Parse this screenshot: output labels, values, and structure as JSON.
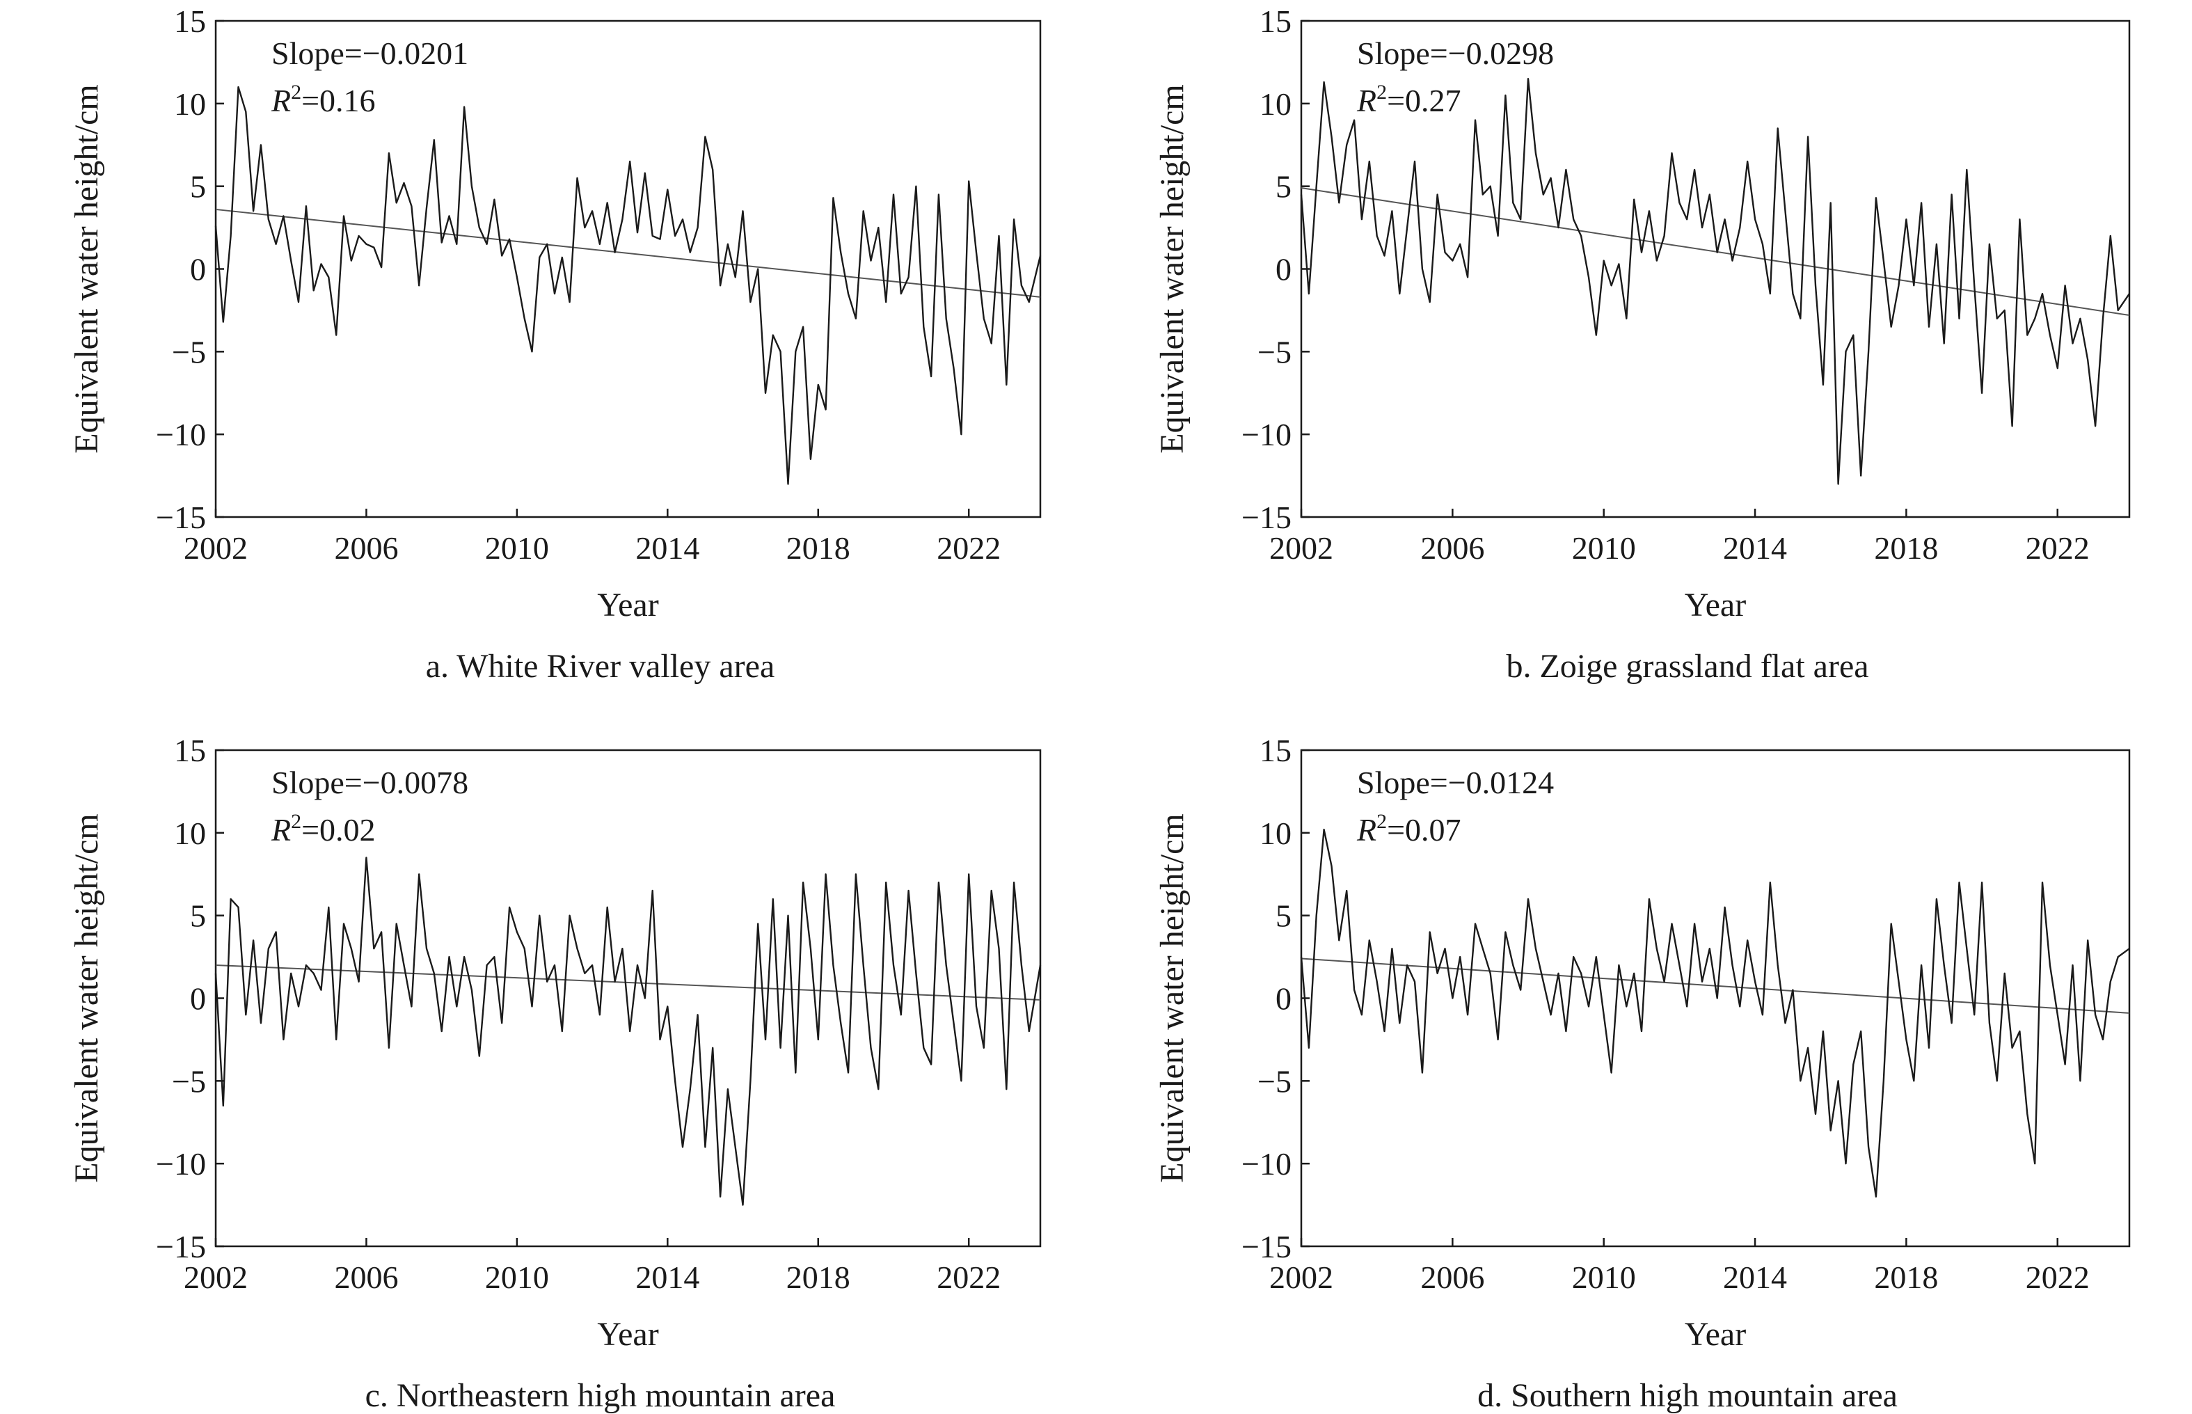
{
  "chart_data": [
    {
      "type": "line",
      "caption": "a. White River valley area",
      "xlabel": "Year",
      "ylabel": "Equivalent water height/cm",
      "xlim": [
        2002,
        2023.9
      ],
      "ylim": [
        -15,
        15
      ],
      "xticks": [
        "2002",
        "2006",
        "2010",
        "2014",
        "2018",
        "2022"
      ],
      "yticks": [
        "15",
        "10",
        "5",
        "0",
        "−5",
        "−10",
        "−15"
      ],
      "annotation": {
        "slope": "Slope=−0.0201",
        "r2_symbol": "R",
        "r2_sup": "2",
        "r2_value": "=0.16"
      },
      "trend": {
        "x": [
          2002.0,
          2023.9
        ],
        "y": [
          3.6,
          -1.7
        ]
      },
      "series": {
        "x": [
          2002.0,
          2002.2,
          2002.4,
          2002.6,
          2002.8,
          2003.0,
          2003.2,
          2003.4,
          2003.6,
          2003.8,
          2004.0,
          2004.2,
          2004.4,
          2004.6,
          2004.8,
          2005.0,
          2005.2,
          2005.4,
          2005.6,
          2005.8,
          2006.0,
          2006.2,
          2006.4,
          2006.6,
          2006.8,
          2007.0,
          2007.2,
          2007.4,
          2007.6,
          2007.8,
          2008.0,
          2008.2,
          2008.4,
          2008.6,
          2008.8,
          2009.0,
          2009.2,
          2009.4,
          2009.6,
          2009.8,
          2010.0,
          2010.2,
          2010.4,
          2010.6,
          2010.8,
          2011.0,
          2011.2,
          2011.4,
          2011.6,
          2011.8,
          2012.0,
          2012.2,
          2012.4,
          2012.6,
          2012.8,
          2013.0,
          2013.2,
          2013.4,
          2013.6,
          2013.8,
          2014.0,
          2014.2,
          2014.4,
          2014.6,
          2014.8,
          2015.0,
          2015.2,
          2015.4,
          2015.6,
          2015.8,
          2016.0,
          2016.2,
          2016.4,
          2016.6,
          2016.8,
          2017.0,
          2017.2,
          2017.4,
          2017.6,
          2017.8,
          2018.0,
          2018.2,
          2018.4,
          2018.6,
          2018.8,
          2019.0,
          2019.2,
          2019.4,
          2019.6,
          2019.8,
          2020.0,
          2020.2,
          2020.4,
          2020.6,
          2020.8,
          2021.0,
          2021.2,
          2021.4,
          2021.6,
          2021.8,
          2022.0,
          2022.2,
          2022.4,
          2022.6,
          2022.8,
          2023.0,
          2023.2,
          2023.4,
          2023.6,
          2023.9
        ],
        "y": [
          2.6,
          -3.2,
          2.0,
          11.0,
          9.5,
          3.5,
          7.5,
          3.0,
          1.5,
          3.2,
          0.5,
          -2.0,
          3.8,
          -1.3,
          0.3,
          -0.5,
          -4.0,
          3.2,
          0.5,
          2.0,
          1.5,
          1.3,
          0.1,
          7.0,
          4.0,
          5.2,
          3.8,
          -1.0,
          3.7,
          7.8,
          1.6,
          3.2,
          1.5,
          9.8,
          5.0,
          2.5,
          1.5,
          4.2,
          0.8,
          1.8,
          -0.5,
          -3.0,
          -5.0,
          0.7,
          1.5,
          -1.5,
          0.7,
          -2.0,
          5.5,
          2.5,
          3.5,
          1.5,
          4.0,
          1.0,
          3.0,
          6.5,
          2.2,
          5.8,
          2.0,
          1.8,
          4.8,
          2.0,
          3.0,
          1.0,
          2.5,
          8.0,
          6.0,
          -1.0,
          1.5,
          -0.5,
          3.5,
          -2.0,
          0.0,
          -7.5,
          -4.0,
          -5.0,
          -13.0,
          -5.0,
          -3.5,
          -11.5,
          -7.0,
          -8.5,
          4.3,
          1.0,
          -1.5,
          -3.0,
          3.5,
          0.5,
          2.5,
          -2.0,
          4.5,
          -1.5,
          -0.5,
          5.0,
          -3.5,
          -6.5,
          4.5,
          -3.0,
          -6.0,
          -10.0,
          5.3,
          1.0,
          -3.0,
          -4.5,
          2.0,
          -7.0,
          3.0,
          -1.0,
          -2.0,
          0.8
        ]
      }
    },
    {
      "type": "line",
      "caption": "b. Zoige grassland flat area",
      "xlabel": "Year",
      "ylabel": "Equivalent water height/cm",
      "xlim": [
        2002,
        2023.9
      ],
      "ylim": [
        -15,
        15
      ],
      "xticks": [
        "2002",
        "2006",
        "2010",
        "2014",
        "2018",
        "2022"
      ],
      "yticks": [
        "15",
        "10",
        "5",
        "0",
        "−5",
        "−10",
        "−15"
      ],
      "annotation": {
        "slope": "Slope=−0.0298",
        "r2_symbol": "R",
        "r2_sup": "2",
        "r2_value": "=0.27"
      },
      "trend": {
        "x": [
          2002.0,
          2023.9
        ],
        "y": [
          4.9,
          -2.8
        ]
      },
      "series": {
        "x": [
          2002.0,
          2002.2,
          2002.4,
          2002.6,
          2002.8,
          2003.0,
          2003.2,
          2003.4,
          2003.6,
          2003.8,
          2004.0,
          2004.2,
          2004.4,
          2004.6,
          2004.8,
          2005.0,
          2005.2,
          2005.4,
          2005.6,
          2005.8,
          2006.0,
          2006.2,
          2006.4,
          2006.6,
          2006.8,
          2007.0,
          2007.2,
          2007.4,
          2007.6,
          2007.8,
          2008.0,
          2008.2,
          2008.4,
          2008.6,
          2008.8,
          2009.0,
          2009.2,
          2009.4,
          2009.6,
          2009.8,
          2010.0,
          2010.2,
          2010.4,
          2010.6,
          2010.8,
          2011.0,
          2011.2,
          2011.4,
          2011.6,
          2011.8,
          2012.0,
          2012.2,
          2012.4,
          2012.6,
          2012.8,
          2013.0,
          2013.2,
          2013.4,
          2013.6,
          2013.8,
          2014.0,
          2014.2,
          2014.4,
          2014.6,
          2014.8,
          2015.0,
          2015.2,
          2015.4,
          2015.6,
          2015.8,
          2016.0,
          2016.2,
          2016.4,
          2016.6,
          2016.8,
          2017.0,
          2017.2,
          2017.4,
          2017.6,
          2017.8,
          2018.0,
          2018.2,
          2018.4,
          2018.6,
          2018.8,
          2019.0,
          2019.2,
          2019.4,
          2019.6,
          2019.8,
          2020.0,
          2020.2,
          2020.4,
          2020.6,
          2020.8,
          2021.0,
          2021.2,
          2021.4,
          2021.6,
          2021.8,
          2022.0,
          2022.2,
          2022.4,
          2022.6,
          2022.8,
          2023.0,
          2023.2,
          2023.4,
          2023.6,
          2023.9
        ],
        "y": [
          4.5,
          -1.5,
          5.0,
          11.3,
          8.0,
          4.0,
          7.5,
          9.0,
          3.0,
          6.5,
          2.0,
          0.8,
          3.5,
          -1.5,
          2.5,
          6.5,
          0.0,
          -2.0,
          4.5,
          1.0,
          0.5,
          1.5,
          -0.5,
          9.0,
          4.5,
          5.0,
          2.0,
          10.5,
          4.0,
          3.0,
          11.5,
          7.0,
          4.5,
          5.5,
          2.5,
          6.0,
          3.0,
          2.0,
          -0.5,
          -4.0,
          0.5,
          -1.0,
          0.3,
          -3.0,
          4.2,
          1.0,
          3.5,
          0.5,
          2.0,
          7.0,
          4.0,
          3.0,
          6.0,
          2.5,
          4.5,
          1.0,
          3.0,
          0.5,
          2.5,
          6.5,
          3.0,
          1.5,
          -1.5,
          8.5,
          3.5,
          -1.5,
          -3.0,
          8.0,
          -1.0,
          -7.0,
          4.0,
          -13.0,
          -5.0,
          -4.0,
          -12.5,
          -5.0,
          4.3,
          0.5,
          -3.5,
          -1.0,
          3.0,
          -1.0,
          4.0,
          -3.5,
          1.5,
          -4.5,
          4.5,
          -3.0,
          6.0,
          -1.0,
          -7.5,
          1.5,
          -3.0,
          -2.5,
          -9.5,
          3.0,
          -4.0,
          -3.0,
          -1.5,
          -4.0,
          -6.0,
          -1.0,
          -4.5,
          -3.0,
          -5.5,
          -9.5,
          -3.0,
          2.0,
          -2.5,
          -1.5
        ]
      }
    },
    {
      "type": "line",
      "caption": "c. Northeastern high mountain area",
      "xlabel": "Year",
      "ylabel": "Equivalent water height/cm",
      "xlim": [
        2002,
        2023.9
      ],
      "ylim": [
        -15,
        15
      ],
      "xticks": [
        "2002",
        "2006",
        "2010",
        "2014",
        "2018",
        "2022"
      ],
      "yticks": [
        "15",
        "10",
        "5",
        "0",
        "−5",
        "−10",
        "−15"
      ],
      "annotation": {
        "slope": "Slope=−0.0078",
        "r2_symbol": "R",
        "r2_sup": "2",
        "r2_value": "=0.02"
      },
      "trend": {
        "x": [
          2002.0,
          2023.9
        ],
        "y": [
          2.0,
          -0.1
        ]
      },
      "series": {
        "x": [
          2002.0,
          2002.2,
          2002.4,
          2002.6,
          2002.8,
          2003.0,
          2003.2,
          2003.4,
          2003.6,
          2003.8,
          2004.0,
          2004.2,
          2004.4,
          2004.6,
          2004.8,
          2005.0,
          2005.2,
          2005.4,
          2005.6,
          2005.8,
          2006.0,
          2006.2,
          2006.4,
          2006.6,
          2006.8,
          2007.0,
          2007.2,
          2007.4,
          2007.6,
          2007.8,
          2008.0,
          2008.2,
          2008.4,
          2008.6,
          2008.8,
          2009.0,
          2009.2,
          2009.4,
          2009.6,
          2009.8,
          2010.0,
          2010.2,
          2010.4,
          2010.6,
          2010.8,
          2011.0,
          2011.2,
          2011.4,
          2011.6,
          2011.8,
          2012.0,
          2012.2,
          2012.4,
          2012.6,
          2012.8,
          2013.0,
          2013.2,
          2013.4,
          2013.6,
          2013.8,
          2014.0,
          2014.2,
          2014.4,
          2014.6,
          2014.8,
          2015.0,
          2015.2,
          2015.4,
          2015.6,
          2015.8,
          2016.0,
          2016.2,
          2016.4,
          2016.6,
          2016.8,
          2017.0,
          2017.2,
          2017.4,
          2017.6,
          2017.8,
          2018.0,
          2018.2,
          2018.4,
          2018.6,
          2018.8,
          2019.0,
          2019.2,
          2019.4,
          2019.6,
          2019.8,
          2020.0,
          2020.2,
          2020.4,
          2020.6,
          2020.8,
          2021.0,
          2021.2,
          2021.4,
          2021.6,
          2021.8,
          2022.0,
          2022.2,
          2022.4,
          2022.6,
          2022.8,
          2023.0,
          2023.2,
          2023.4,
          2023.6,
          2023.9
        ],
        "y": [
          1.5,
          -6.5,
          6.0,
          5.5,
          -1.0,
          3.5,
          -1.5,
          3.0,
          4.0,
          -2.5,
          1.5,
          -0.5,
          2.0,
          1.5,
          0.5,
          5.5,
          -2.5,
          4.5,
          3.0,
          1.0,
          8.5,
          3.0,
          4.0,
          -3.0,
          4.5,
          2.0,
          -0.5,
          7.5,
          3.0,
          1.5,
          -2.0,
          2.5,
          -0.5,
          2.5,
          0.5,
          -3.5,
          2.0,
          2.5,
          -1.5,
          5.5,
          4.0,
          3.0,
          -0.5,
          5.0,
          1.0,
          2.0,
          -2.0,
          5.0,
          3.0,
          1.5,
          2.0,
          -1.0,
          5.5,
          1.0,
          3.0,
          -2.0,
          2.0,
          0.0,
          6.5,
          -2.5,
          -0.5,
          -5.0,
          -9.0,
          -5.5,
          -1.0,
          -9.0,
          -3.0,
          -12.0,
          -5.5,
          -9.0,
          -12.5,
          -5.0,
          4.5,
          -2.5,
          6.0,
          -3.0,
          5.0,
          -4.5,
          7.0,
          3.0,
          -2.5,
          7.5,
          2.0,
          -1.5,
          -4.5,
          7.5,
          2.0,
          -3.0,
          -5.5,
          7.0,
          2.0,
          -1.0,
          6.5,
          1.5,
          -3.0,
          -4.0,
          7.0,
          2.0,
          -1.5,
          -5.0,
          7.5,
          -0.5,
          -3.0,
          6.5,
          3.0,
          -5.5,
          7.0,
          2.0,
          -2.0,
          2.0
        ]
      }
    },
    {
      "type": "line",
      "caption": "d. Southern high mountain area",
      "xlabel": "Year",
      "ylabel": "Equivalent water height/cm",
      "xlim": [
        2002,
        2023.9
      ],
      "ylim": [
        -15,
        15
      ],
      "xticks": [
        "2002",
        "2006",
        "2010",
        "2014",
        "2018",
        "2022"
      ],
      "yticks": [
        "15",
        "10",
        "5",
        "0",
        "−5",
        "−10",
        "−15"
      ],
      "annotation": {
        "slope": "Slope=−0.0124",
        "r2_symbol": "R",
        "r2_sup": "2",
        "r2_value": "=0.07"
      },
      "trend": {
        "x": [
          2002.0,
          2023.9
        ],
        "y": [
          2.4,
          -0.9
        ]
      },
      "series": {
        "x": [
          2002.0,
          2002.2,
          2002.4,
          2002.6,
          2002.8,
          2003.0,
          2003.2,
          2003.4,
          2003.6,
          2003.8,
          2004.0,
          2004.2,
          2004.4,
          2004.6,
          2004.8,
          2005.0,
          2005.2,
          2005.4,
          2005.6,
          2005.8,
          2006.0,
          2006.2,
          2006.4,
          2006.6,
          2006.8,
          2007.0,
          2007.2,
          2007.4,
          2007.6,
          2007.8,
          2008.0,
          2008.2,
          2008.4,
          2008.6,
          2008.8,
          2009.0,
          2009.2,
          2009.4,
          2009.6,
          2009.8,
          2010.0,
          2010.2,
          2010.4,
          2010.6,
          2010.8,
          2011.0,
          2011.2,
          2011.4,
          2011.6,
          2011.8,
          2012.0,
          2012.2,
          2012.4,
          2012.6,
          2012.8,
          2013.0,
          2013.2,
          2013.4,
          2013.6,
          2013.8,
          2014.0,
          2014.2,
          2014.4,
          2014.6,
          2014.8,
          2015.0,
          2015.2,
          2015.4,
          2015.6,
          2015.8,
          2016.0,
          2016.2,
          2016.4,
          2016.6,
          2016.8,
          2017.0,
          2017.2,
          2017.4,
          2017.6,
          2017.8,
          2018.0,
          2018.2,
          2018.4,
          2018.6,
          2018.8,
          2019.0,
          2019.2,
          2019.4,
          2019.6,
          2019.8,
          2020.0,
          2020.2,
          2020.4,
          2020.6,
          2020.8,
          2021.0,
          2021.2,
          2021.4,
          2021.6,
          2021.8,
          2022.0,
          2022.2,
          2022.4,
          2022.6,
          2022.8,
          2023.0,
          2023.2,
          2023.4,
          2023.6,
          2023.9
        ],
        "y": [
          2.5,
          -3.0,
          5.0,
          10.2,
          8.0,
          3.5,
          6.5,
          0.5,
          -1.0,
          3.5,
          1.0,
          -2.0,
          3.0,
          -1.5,
          2.0,
          1.0,
          -4.5,
          4.0,
          1.5,
          3.0,
          0.0,
          2.5,
          -1.0,
          4.5,
          3.0,
          1.5,
          -2.5,
          4.0,
          2.0,
          0.5,
          6.0,
          3.0,
          1.0,
          -1.0,
          1.5,
          -2.0,
          2.5,
          1.5,
          -0.5,
          2.5,
          -1.0,
          -4.5,
          2.0,
          -0.5,
          1.5,
          -2.0,
          6.0,
          3.0,
          1.0,
          4.5,
          2.0,
          -0.5,
          4.5,
          1.0,
          3.0,
          0.0,
          5.5,
          2.0,
          -0.5,
          3.5,
          1.0,
          -1.0,
          7.0,
          2.0,
          -1.5,
          0.5,
          -5.0,
          -3.0,
          -7.0,
          -2.0,
          -8.0,
          -5.0,
          -10.0,
          -4.0,
          -2.0,
          -9.0,
          -12.0,
          -5.0,
          4.5,
          1.0,
          -2.5,
          -5.0,
          2.0,
          -3.0,
          6.0,
          2.0,
          -1.5,
          7.0,
          3.0,
          -1.0,
          7.0,
          -1.5,
          -5.0,
          1.5,
          -3.0,
          -2.0,
          -7.0,
          -10.0,
          7.0,
          2.0,
          -1.0,
          -4.0,
          2.0,
          -5.0,
          3.5,
          -1.0,
          -2.5,
          1.0,
          2.5,
          3.0
        ]
      }
    }
  ]
}
